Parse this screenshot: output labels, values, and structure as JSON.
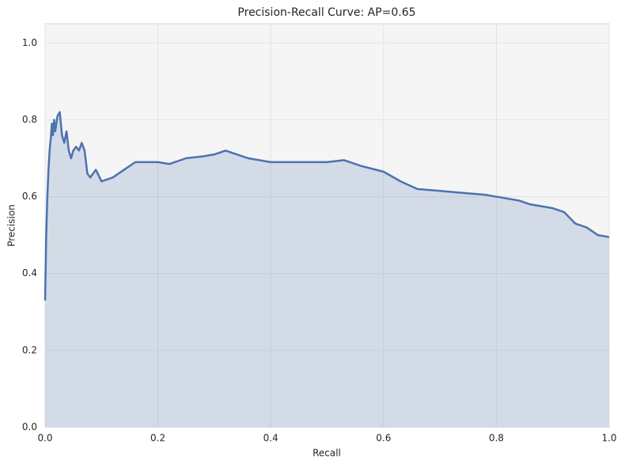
{
  "chart_data": {
    "type": "area",
    "title": "Precision-Recall Curve: AP=0.65",
    "xlabel": "Recall",
    "ylabel": "Precision",
    "x": [
      0,
      0.002,
      0.004,
      0.006,
      0.008,
      0.01,
      0.012,
      0.014,
      0.016,
      0.018,
      0.02,
      0.022,
      0.026,
      0.028,
      0.03,
      0.034,
      0.038,
      0.042,
      0.046,
      0.05,
      0.055,
      0.06,
      0.065,
      0.07,
      0.075,
      0.08,
      0.09,
      0.1,
      0.12,
      0.14,
      0.16,
      0.18,
      0.2,
      0.22,
      0.25,
      0.28,
      0.3,
      0.32,
      0.34,
      0.36,
      0.4,
      0.45,
      0.5,
      0.53,
      0.56,
      0.6,
      0.63,
      0.66,
      0.7,
      0.74,
      0.78,
      0.8,
      0.84,
      0.86,
      0.9,
      0.92,
      0.94,
      0.96,
      0.98,
      1.0
    ],
    "series": [
      {
        "name": "Precision",
        "color": "#4c72b0",
        "values": [
          0.33,
          0.5,
          0.6,
          0.67,
          0.72,
          0.75,
          0.79,
          0.76,
          0.8,
          0.77,
          0.79,
          0.81,
          0.82,
          0.79,
          0.76,
          0.74,
          0.77,
          0.72,
          0.7,
          0.72,
          0.73,
          0.72,
          0.74,
          0.72,
          0.66,
          0.65,
          0.67,
          0.64,
          0.65,
          0.67,
          0.69,
          0.69,
          0.69,
          0.685,
          0.7,
          0.705,
          0.71,
          0.72,
          0.71,
          0.7,
          0.69,
          0.69,
          0.69,
          0.695,
          0.68,
          0.665,
          0.64,
          0.62,
          0.615,
          0.61,
          0.605,
          0.6,
          0.59,
          0.58,
          0.57,
          0.56,
          0.53,
          0.52,
          0.5,
          0.495
        ]
      }
    ],
    "xlim": [
      0,
      1
    ],
    "ylim": [
      0,
      1.05
    ],
    "xticks": [
      {
        "value": 0,
        "label": "0.0"
      },
      0.2,
      0.4,
      0.6,
      0.8,
      {
        "value": 1,
        "label": "1.0"
      }
    ],
    "yticks": [
      {
        "value": 0,
        "label": "0.0"
      },
      0.2,
      0.4,
      0.6,
      0.8,
      {
        "value": 1,
        "label": "1.0"
      }
    ],
    "grid": true
  }
}
